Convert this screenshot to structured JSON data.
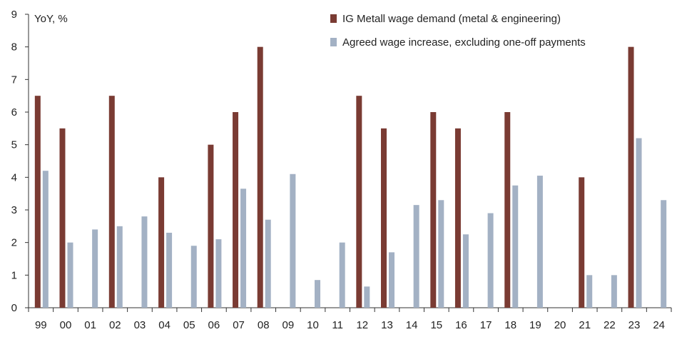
{
  "chart_data": {
    "type": "bar",
    "ylabel": "YoY, %",
    "ylim": [
      0,
      9
    ],
    "yticks": [
      "0",
      "1",
      "2",
      "3",
      "4",
      "5",
      "6",
      "7",
      "8",
      "9"
    ],
    "categories": [
      "99",
      "00",
      "01",
      "02",
      "03",
      "04",
      "05",
      "06",
      "07",
      "08",
      "09",
      "10",
      "11",
      "12",
      "13",
      "14",
      "15",
      "16",
      "17",
      "18",
      "19",
      "20",
      "21",
      "22",
      "23",
      "24"
    ],
    "legend_position": "top-right",
    "series": [
      {
        "name": "IG Metall wage demand (metal & engineering)",
        "color": "#7a3b33",
        "values": [
          6.5,
          5.5,
          null,
          6.5,
          null,
          4.0,
          null,
          5.0,
          6.0,
          8.0,
          null,
          null,
          null,
          6.5,
          5.5,
          null,
          6.0,
          5.5,
          null,
          6.0,
          null,
          null,
          4.0,
          null,
          8.0,
          null
        ]
      },
      {
        "name": "Agreed wage increase, excluding one-off payments",
        "color": "#a3b1c4",
        "values": [
          4.2,
          2.0,
          2.4,
          2.5,
          2.8,
          2.3,
          1.9,
          2.1,
          3.65,
          2.7,
          4.1,
          0.85,
          2.0,
          0.65,
          1.7,
          3.15,
          3.3,
          2.25,
          2.9,
          3.75,
          4.05,
          null,
          1.0,
          1.0,
          5.2,
          3.3
        ]
      }
    ]
  }
}
